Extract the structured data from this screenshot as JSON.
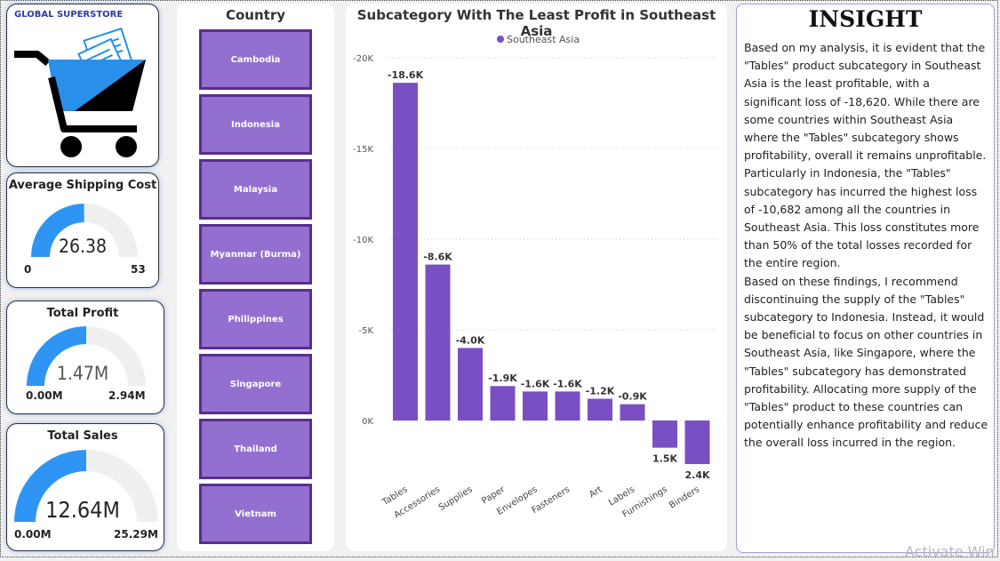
{
  "logo": {
    "title": "GLOBAL SUPERSTORE"
  },
  "kpis": [
    {
      "title": "Average Shipping Cost",
      "value": "26.38",
      "min": "0",
      "max": "53",
      "fraction": 0.4977
    },
    {
      "title": "Total Profit",
      "value": "1.47M",
      "min": "0.00M",
      "max": "2.94M",
      "fraction": 0.5
    },
    {
      "title": "Total Sales",
      "value": "12.64M",
      "min": "0.00M",
      "max": "25.29M",
      "fraction": 0.4998
    }
  ],
  "slicer": {
    "title": "Country",
    "items": [
      "Cambodia",
      "Indonesia",
      "Malaysia",
      "Myanmar (Burma)",
      "Philippines",
      "Singapore",
      "Thailand",
      "Vietnam"
    ]
  },
  "chart_data": {
    "type": "bar",
    "title": "Subcategory With The Least Profit in Southeast Asia",
    "legend": {
      "entries": [
        "Southeast Asia"
      ],
      "position": "top-center"
    },
    "series": [
      {
        "name": "Southeast Asia",
        "color": "#7a4fc4",
        "values": [
          -18620,
          -8600,
          -4000,
          -1900,
          -1600,
          -1600,
          -1200,
          -900,
          1500,
          2400
        ],
        "labels": [
          "-18.6K",
          "-8.6K",
          "-4.0K",
          "-1.9K",
          "-1.6K",
          "-1.6K",
          "-1.2K",
          "-0.9K",
          "1.5K",
          "2.4K"
        ]
      }
    ],
    "categories": [
      "Tables",
      "Accessories",
      "Supplies",
      "Paper",
      "Envelopes",
      "Fasteners",
      "Art",
      "Labels",
      "Furnishings",
      "Binders"
    ],
    "yaxis": {
      "ticks": [
        "-20K",
        "-15K",
        "-10K",
        "-5K",
        "0K"
      ],
      "tick_values": [
        -20000,
        -15000,
        -10000,
        -5000,
        0
      ],
      "reversed": true,
      "range": [
        -20000,
        2500
      ]
    },
    "grid": true
  },
  "insight": {
    "title": "INSIGHT",
    "paragraphs": [
      "Based on my analysis, it is evident that the \"Tables\" product subcategory in Southeast Asia is the least profitable, with a significant loss of -18,620. While there are some countries within Southeast Asia where the \"Tables\" subcategory shows profitability, overall it remains unprofitable.",
      "Particularly in Indonesia, the \"Tables\" subcategory has incurred the highest loss of -10,682 among all the countries in Southeast Asia. This loss constitutes more than 50% of the total losses recorded for the entire region.",
      "Based on these findings, I recommend discontinuing the supply of the \"Tables\" subcategory to Indonesia. Instead, it would be beneficial to focus on other countries in Southeast Asia, like Singapore, where the \"Tables\" subcategory has demonstrated profitability. Allocating more supply of the \"Tables\" product to these countries can potentially enhance profitability and reduce the overall loss incurred in the region."
    ]
  },
  "watermark": "Activate Win",
  "colors": {
    "gauge_fill": "#2f95f5",
    "gauge_track": "#efefef",
    "bar": "#7a4fc4",
    "slicer_fill": "#9370cf",
    "slicer_border": "#5a2d8c"
  }
}
